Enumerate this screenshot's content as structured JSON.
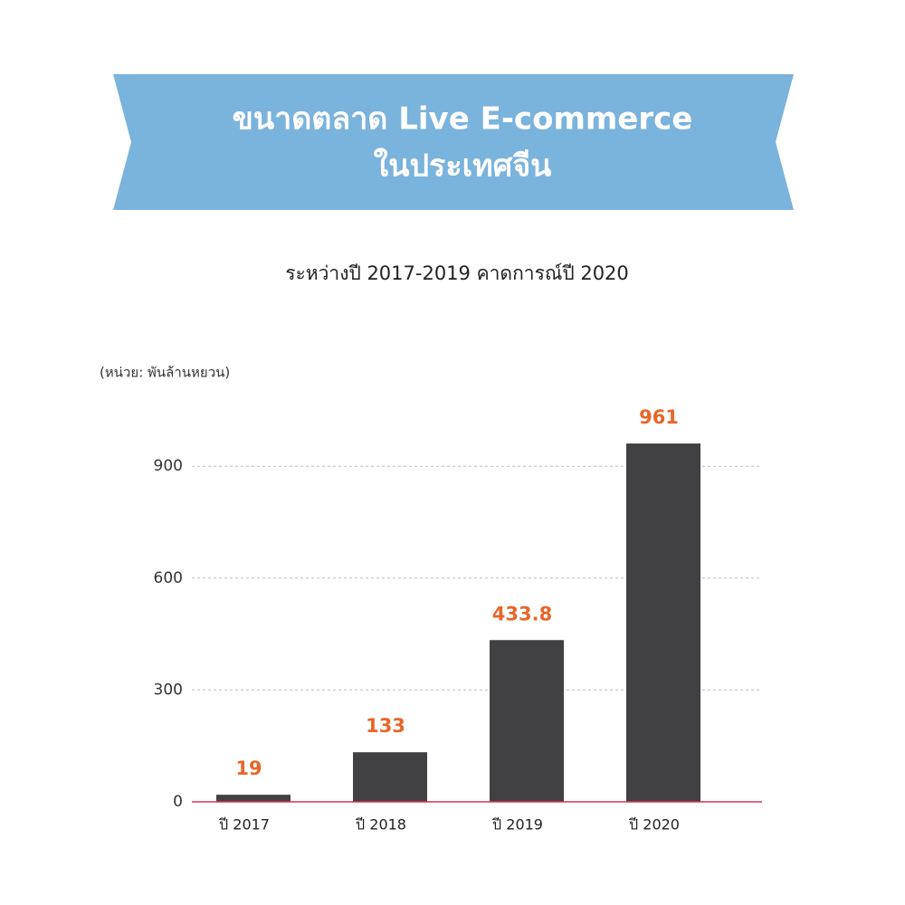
{
  "chart_data": {
    "type": "bar",
    "title": [
      "ขนาดตลาด Live E-commerce",
      "ในประเทศจีน"
    ],
    "subtitle": "ระหว่างปี 2017-2019 คาดการณ์ปี 2020",
    "y_label": "(หน่วย: พันล้านหยวน)",
    "categories": [
      "ปี 2017",
      "ปี 2018",
      "ปี 2019",
      "ปี 2020"
    ],
    "values": [
      19,
      133,
      433.8,
      961
    ],
    "color": "#414042",
    "label_color": "#e8662a",
    "ylim": [
      0,
      1000
    ],
    "yticks": [
      0,
      300,
      600,
      900
    ],
    "grid": true
  }
}
